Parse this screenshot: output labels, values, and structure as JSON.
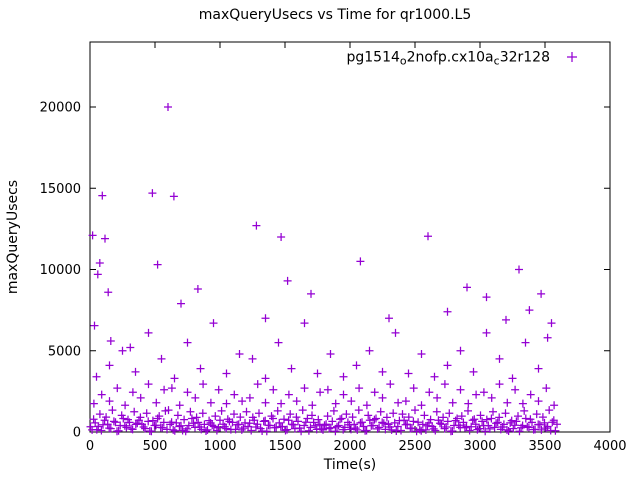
{
  "chart_data": {
    "type": "scatter",
    "title": "maxQueryUsecs vs Time for qr1000.L5",
    "xlabel": "Time(s)",
    "ylabel": "maxQueryUsecs",
    "xlim": [
      0,
      4000
    ],
    "ylim": [
      0,
      24000
    ],
    "xticks": [
      0,
      500,
      1000,
      1500,
      2000,
      2500,
      3000,
      3500,
      4000
    ],
    "yticks": [
      0,
      5000,
      10000,
      15000,
      20000
    ],
    "grid": false,
    "background": "#ffffff",
    "legend": {
      "label": "pg1514_o2nofp.cx10a_c32r128",
      "position": "top-right",
      "marker": "+",
      "parts": [
        {
          "t": "pg1514",
          "sub": false
        },
        {
          "t": "o",
          "sub": true
        },
        {
          "t": "2nofp.cx10a",
          "sub": false
        },
        {
          "t": "c",
          "sub": true
        },
        {
          "t": "32r128",
          "sub": false
        }
      ]
    },
    "marker": {
      "symbol": "+",
      "color": "#9400D3"
    },
    "points": [
      [
        4,
        320
      ],
      [
        28,
        780
      ],
      [
        52,
        150
      ],
      [
        76,
        1100
      ],
      [
        100,
        450
      ],
      [
        124,
        920
      ],
      [
        148,
        240
      ],
      [
        172,
        1350
      ],
      [
        196,
        600
      ],
      [
        220,
        80
      ],
      [
        244,
        1020
      ],
      [
        268,
        380
      ],
      [
        292,
        760
      ],
      [
        316,
        190
      ],
      [
        340,
        1250
      ],
      [
        364,
        540
      ],
      [
        388,
        900
      ],
      [
        412,
        310
      ],
      [
        436,
        1150
      ],
      [
        460,
        60
      ],
      [
        484,
        700
      ],
      [
        508,
        420
      ],
      [
        532,
        980
      ],
      [
        556,
        260
      ],
      [
        580,
        1300
      ],
      [
        604,
        1350
      ],
      [
        628,
        600
      ],
      [
        652,
        80
      ],
      [
        676,
        1020
      ],
      [
        700,
        380
      ],
      [
        724,
        760
      ],
      [
        748,
        190
      ],
      [
        772,
        1250
      ],
      [
        796,
        540
      ],
      [
        820,
        900
      ],
      [
        844,
        310
      ],
      [
        868,
        1150
      ],
      [
        892,
        60
      ],
      [
        916,
        700
      ],
      [
        940,
        420
      ],
      [
        964,
        980
      ],
      [
        988,
        260
      ],
      [
        1012,
        1300
      ],
      [
        1036,
        320
      ],
      [
        1060,
        780
      ],
      [
        1084,
        150
      ],
      [
        1108,
        1100
      ],
      [
        1132,
        450
      ],
      [
        1156,
        920
      ],
      [
        1180,
        240
      ],
      [
        1204,
        1250
      ],
      [
        1228,
        540
      ],
      [
        1252,
        900
      ],
      [
        1276,
        310
      ],
      [
        1300,
        1150
      ],
      [
        1324,
        60
      ],
      [
        1348,
        700
      ],
      [
        1372,
        420
      ],
      [
        1396,
        980
      ],
      [
        1420,
        260
      ],
      [
        1444,
        1300
      ],
      [
        1468,
        320
      ],
      [
        1492,
        780
      ],
      [
        1516,
        150
      ],
      [
        1540,
        1100
      ],
      [
        1564,
        450
      ],
      [
        1588,
        920
      ],
      [
        1612,
        240
      ],
      [
        1636,
        1350
      ],
      [
        1660,
        600
      ],
      [
        1684,
        80
      ],
      [
        1708,
        1020
      ],
      [
        1732,
        380
      ],
      [
        1756,
        760
      ],
      [
        1780,
        190
      ],
      [
        1804,
        420
      ],
      [
        1828,
        980
      ],
      [
        1852,
        260
      ],
      [
        1876,
        1300
      ],
      [
        1900,
        320
      ],
      [
        1924,
        780
      ],
      [
        1948,
        150
      ],
      [
        1972,
        1100
      ],
      [
        1996,
        450
      ],
      [
        2020,
        920
      ],
      [
        2044,
        240
      ],
      [
        2068,
        1350
      ],
      [
        2092,
        600
      ],
      [
        2116,
        80
      ],
      [
        2140,
        1020
      ],
      [
        2164,
        380
      ],
      [
        2188,
        760
      ],
      [
        2212,
        190
      ],
      [
        2236,
        1250
      ],
      [
        2260,
        540
      ],
      [
        2284,
        900
      ],
      [
        2308,
        310
      ],
      [
        2332,
        1150
      ],
      [
        2356,
        60
      ],
      [
        2380,
        700
      ],
      [
        2404,
        1100
      ],
      [
        2428,
        450
      ],
      [
        2452,
        920
      ],
      [
        2476,
        240
      ],
      [
        2500,
        1350
      ],
      [
        2524,
        600
      ],
      [
        2548,
        80
      ],
      [
        2572,
        1020
      ],
      [
        2596,
        380
      ],
      [
        2620,
        760
      ],
      [
        2644,
        190
      ],
      [
        2668,
        1250
      ],
      [
        2692,
        540
      ],
      [
        2716,
        900
      ],
      [
        2740,
        310
      ],
      [
        2764,
        1150
      ],
      [
        2788,
        60
      ],
      [
        2812,
        700
      ],
      [
        2836,
        420
      ],
      [
        2860,
        980
      ],
      [
        2884,
        260
      ],
      [
        2908,
        1300
      ],
      [
        2932,
        320
      ],
      [
        2956,
        780
      ],
      [
        2980,
        150
      ],
      [
        3004,
        1020
      ],
      [
        3028,
        380
      ],
      [
        3052,
        760
      ],
      [
        3076,
        190
      ],
      [
        3100,
        1250
      ],
      [
        3124,
        540
      ],
      [
        3148,
        900
      ],
      [
        3172,
        310
      ],
      [
        3196,
        1150
      ],
      [
        3220,
        60
      ],
      [
        3244,
        700
      ],
      [
        3268,
        420
      ],
      [
        3292,
        980
      ],
      [
        3316,
        260
      ],
      [
        3340,
        1300
      ],
      [
        3364,
        320
      ],
      [
        3388,
        780
      ],
      [
        3412,
        150
      ],
      [
        3436,
        1100
      ],
      [
        3460,
        450
      ],
      [
        3484,
        920
      ],
      [
        3508,
        240
      ],
      [
        3532,
        1350
      ],
      [
        3556,
        600
      ],
      [
        3580,
        80
      ],
      [
        16,
        130
      ],
      [
        40,
        560
      ],
      [
        64,
        340
      ],
      [
        88,
        90
      ],
      [
        112,
        720
      ],
      [
        136,
        480
      ],
      [
        160,
        210
      ],
      [
        184,
        650
      ],
      [
        208,
        50
      ],
      [
        232,
        400
      ],
      [
        256,
        830
      ],
      [
        280,
        280
      ],
      [
        304,
        590
      ],
      [
        328,
        160
      ],
      [
        352,
        470
      ],
      [
        376,
        720
      ],
      [
        400,
        480
      ],
      [
        424,
        210
      ],
      [
        448,
        650
      ],
      [
        472,
        50
      ],
      [
        496,
        400
      ],
      [
        520,
        830
      ],
      [
        544,
        280
      ],
      [
        568,
        590
      ],
      [
        592,
        160
      ],
      [
        616,
        470
      ],
      [
        640,
        130
      ],
      [
        664,
        560
      ],
      [
        688,
        340
      ],
      [
        712,
        90
      ],
      [
        736,
        50
      ],
      [
        760,
        400
      ],
      [
        784,
        830
      ],
      [
        808,
        280
      ],
      [
        832,
        590
      ],
      [
        856,
        160
      ],
      [
        880,
        470
      ],
      [
        904,
        130
      ],
      [
        928,
        560
      ],
      [
        952,
        340
      ],
      [
        976,
        90
      ],
      [
        1000,
        720
      ],
      [
        1024,
        480
      ],
      [
        1048,
        210
      ],
      [
        1072,
        650
      ],
      [
        1096,
        590
      ],
      [
        1120,
        160
      ],
      [
        1144,
        470
      ],
      [
        1168,
        130
      ],
      [
        1192,
        560
      ],
      [
        1216,
        340
      ],
      [
        1240,
        90
      ],
      [
        1264,
        720
      ],
      [
        1288,
        480
      ],
      [
        1312,
        210
      ],
      [
        1336,
        650
      ],
      [
        1360,
        50
      ],
      [
        1384,
        400
      ],
      [
        1408,
        830
      ],
      [
        1432,
        280
      ],
      [
        1456,
        560
      ],
      [
        1480,
        340
      ],
      [
        1504,
        90
      ],
      [
        1528,
        720
      ],
      [
        1552,
        480
      ],
      [
        1576,
        210
      ],
      [
        1600,
        650
      ],
      [
        1624,
        50
      ],
      [
        1648,
        400
      ],
      [
        1672,
        830
      ],
      [
        1696,
        280
      ],
      [
        1720,
        590
      ],
      [
        1744,
        160
      ],
      [
        1768,
        470
      ],
      [
        1792,
        130
      ],
      [
        1816,
        480
      ],
      [
        1840,
        210
      ],
      [
        1864,
        650
      ],
      [
        1888,
        50
      ],
      [
        1912,
        400
      ],
      [
        1936,
        830
      ],
      [
        1960,
        280
      ],
      [
        1984,
        590
      ],
      [
        2008,
        160
      ],
      [
        2032,
        470
      ],
      [
        2056,
        130
      ],
      [
        2080,
        560
      ],
      [
        2104,
        340
      ],
      [
        2128,
        90
      ],
      [
        2152,
        720
      ],
      [
        2176,
        400
      ],
      [
        2200,
        830
      ],
      [
        2224,
        280
      ],
      [
        2248,
        590
      ],
      [
        2272,
        160
      ],
      [
        2296,
        470
      ],
      [
        2320,
        130
      ],
      [
        2344,
        560
      ],
      [
        2368,
        340
      ],
      [
        2392,
        90
      ],
      [
        2416,
        720
      ],
      [
        2440,
        480
      ],
      [
        2464,
        210
      ],
      [
        2488,
        650
      ],
      [
        2512,
        50
      ],
      [
        2536,
        160
      ],
      [
        2560,
        470
      ],
      [
        2584,
        130
      ],
      [
        2608,
        560
      ],
      [
        2632,
        340
      ],
      [
        2656,
        90
      ],
      [
        2680,
        720
      ],
      [
        2704,
        480
      ],
      [
        2728,
        210
      ],
      [
        2752,
        650
      ],
      [
        2776,
        50
      ],
      [
        2800,
        400
      ],
      [
        2824,
        830
      ],
      [
        2848,
        280
      ],
      [
        2872,
        590
      ],
      [
        2896,
        340
      ],
      [
        2920,
        90
      ],
      [
        2944,
        720
      ],
      [
        2968,
        480
      ],
      [
        2992,
        210
      ],
      [
        3016,
        650
      ],
      [
        3040,
        50
      ],
      [
        3064,
        400
      ],
      [
        3088,
        830
      ],
      [
        3112,
        280
      ],
      [
        3136,
        590
      ],
      [
        3160,
        160
      ],
      [
        3184,
        470
      ],
      [
        3208,
        130
      ],
      [
        3232,
        560
      ],
      [
        3256,
        210
      ],
      [
        3280,
        650
      ],
      [
        3304,
        50
      ],
      [
        3328,
        400
      ],
      [
        3352,
        830
      ],
      [
        3376,
        280
      ],
      [
        3400,
        590
      ],
      [
        3424,
        160
      ],
      [
        3448,
        470
      ],
      [
        3472,
        130
      ],
      [
        3496,
        560
      ],
      [
        3520,
        340
      ],
      [
        3544,
        90
      ],
      [
        3568,
        720
      ],
      [
        3592,
        480
      ],
      [
        30,
        1750
      ],
      [
        90,
        2300
      ],
      [
        150,
        1900
      ],
      [
        210,
        2700
      ],
      [
        270,
        1650
      ],
      [
        330,
        2450
      ],
      [
        390,
        2100
      ],
      [
        450,
        2950
      ],
      [
        510,
        1800
      ],
      [
        570,
        2600
      ],
      [
        630,
        2700
      ],
      [
        690,
        1650
      ],
      [
        750,
        2450
      ],
      [
        810,
        2100
      ],
      [
        870,
        2950
      ],
      [
        930,
        1800
      ],
      [
        990,
        2600
      ],
      [
        1050,
        1750
      ],
      [
        1110,
        2300
      ],
      [
        1170,
        1900
      ],
      [
        1230,
        2100
      ],
      [
        1290,
        2950
      ],
      [
        1350,
        1800
      ],
      [
        1410,
        2600
      ],
      [
        1470,
        1750
      ],
      [
        1530,
        2300
      ],
      [
        1590,
        1900
      ],
      [
        1650,
        2700
      ],
      [
        1710,
        1650
      ],
      [
        1770,
        2450
      ],
      [
        1830,
        2600
      ],
      [
        1890,
        1750
      ],
      [
        1950,
        2300
      ],
      [
        2010,
        1900
      ],
      [
        2070,
        2700
      ],
      [
        2130,
        1650
      ],
      [
        2190,
        2450
      ],
      [
        2250,
        2100
      ],
      [
        2310,
        2950
      ],
      [
        2370,
        1800
      ],
      [
        2430,
        1900
      ],
      [
        2490,
        2700
      ],
      [
        2550,
        1650
      ],
      [
        2610,
        2450
      ],
      [
        2670,
        2100
      ],
      [
        2730,
        2950
      ],
      [
        2790,
        1800
      ],
      [
        2850,
        2600
      ],
      [
        2910,
        1750
      ],
      [
        2970,
        2300
      ],
      [
        3030,
        2450
      ],
      [
        3090,
        2100
      ],
      [
        3150,
        2950
      ],
      [
        3210,
        1800
      ],
      [
        3270,
        2600
      ],
      [
        3330,
        1750
      ],
      [
        3390,
        2300
      ],
      [
        3450,
        1900
      ],
      [
        3510,
        2700
      ],
      [
        3570,
        1650
      ],
      [
        50,
        3400
      ],
      [
        150,
        4100
      ],
      [
        250,
        5000
      ],
      [
        350,
        3700
      ],
      [
        450,
        6100
      ],
      [
        550,
        4500
      ],
      [
        650,
        3300
      ],
      [
        750,
        5500
      ],
      [
        850,
        3900
      ],
      [
        950,
        6700
      ],
      [
        1050,
        3600
      ],
      [
        1150,
        4800
      ],
      [
        1250,
        4500
      ],
      [
        1350,
        3300
      ],
      [
        1450,
        5500
      ],
      [
        1550,
        3900
      ],
      [
        1650,
        6700
      ],
      [
        1750,
        3600
      ],
      [
        1850,
        4800
      ],
      [
        1950,
        3400
      ],
      [
        2050,
        4100
      ],
      [
        2150,
        5000
      ],
      [
        2250,
        3700
      ],
      [
        2350,
        6100
      ],
      [
        2450,
        3600
      ],
      [
        2550,
        4800
      ],
      [
        2650,
        3400
      ],
      [
        2750,
        4100
      ],
      [
        2850,
        5000
      ],
      [
        2950,
        3700
      ],
      [
        3050,
        6100
      ],
      [
        3150,
        4500
      ],
      [
        3250,
        3300
      ],
      [
        3350,
        5500
      ],
      [
        3450,
        3900
      ],
      [
        3550,
        6700
      ],
      [
        20,
        12100
      ],
      [
        35,
        6550
      ],
      [
        60,
        9700
      ],
      [
        75,
        10400
      ],
      [
        95,
        14550
      ],
      [
        115,
        11900
      ],
      [
        140,
        8600
      ],
      [
        160,
        5600
      ],
      [
        310,
        5200
      ],
      [
        480,
        14700
      ],
      [
        520,
        10300
      ],
      [
        600,
        20000
      ],
      [
        645,
        14500
      ],
      [
        700,
        7900
      ],
      [
        830,
        8800
      ],
      [
        1280,
        12700
      ],
      [
        1350,
        7000
      ],
      [
        1470,
        12000
      ],
      [
        1520,
        9300
      ],
      [
        1700,
        8500
      ],
      [
        2080,
        10500
      ],
      [
        2300,
        7000
      ],
      [
        2600,
        12050
      ],
      [
        2750,
        7400
      ],
      [
        2900,
        8900
      ],
      [
        3050,
        8300
      ],
      [
        3200,
        6900
      ],
      [
        3300,
        10000
      ],
      [
        3380,
        7500
      ],
      [
        3470,
        8500
      ],
      [
        3520,
        5800
      ]
    ]
  }
}
